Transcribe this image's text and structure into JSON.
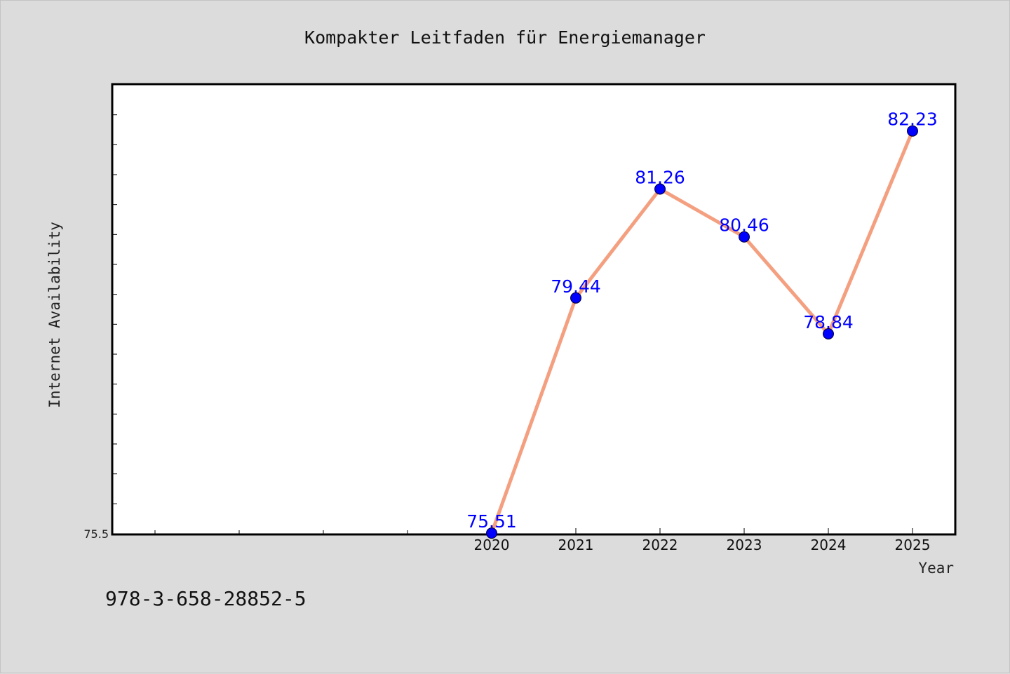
{
  "chart_data": {
    "type": "line",
    "title": "Kompakter Leitfaden für Energiemanager",
    "xlabel": "Year",
    "ylabel": "Internet Availability",
    "categories": [
      "2020",
      "2021",
      "2022",
      "2023",
      "2024",
      "2025"
    ],
    "series": [
      {
        "values": [
          75.51,
          79.44,
          81.26,
          80.46,
          78.84,
          82.23
        ],
        "data_labels": [
          "75.51",
          "79.44",
          "81.26",
          "80.46",
          "78.84",
          "82.23"
        ],
        "line_color": "#f4a080",
        "marker_color": "#0000ff"
      }
    ],
    "x_range": [
      2015.5,
      2025.5
    ],
    "ylim": [
      75.5,
      83.0
    ],
    "y_tick_labels": [
      "75.5"
    ],
    "grid": false,
    "legend": "none"
  },
  "footnote": "978-3-658-28852-5"
}
